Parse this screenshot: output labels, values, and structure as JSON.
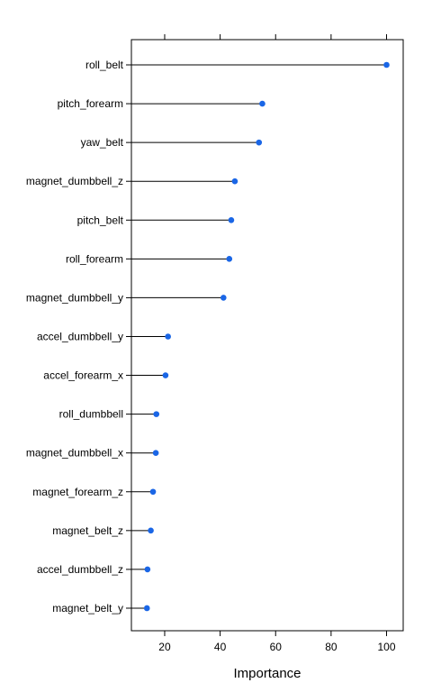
{
  "chart_data": {
    "type": "dot",
    "title": "",
    "xlabel": "Importance",
    "ylabel": "",
    "xlim": [
      8,
      106
    ],
    "x_ticks": [
      20,
      40,
      60,
      80,
      100
    ],
    "grid": false,
    "categories": [
      "roll_belt",
      "pitch_forearm",
      "yaw_belt",
      "magnet_dumbbell_z",
      "pitch_belt",
      "roll_forearm",
      "magnet_dumbbell_y",
      "accel_dumbbell_y",
      "accel_forearm_x",
      "roll_dumbbell",
      "magnet_dumbbell_x",
      "magnet_forearm_z",
      "magnet_belt_z",
      "accel_dumbbell_z",
      "magnet_belt_y"
    ],
    "values": [
      100,
      55.2,
      54,
      45.3,
      44,
      43.3,
      41.2,
      21.2,
      20.3,
      17,
      16.8,
      15.8,
      15,
      13.8,
      13.6
    ],
    "marker_color": "#1a66e6",
    "line_color": "#000000"
  }
}
